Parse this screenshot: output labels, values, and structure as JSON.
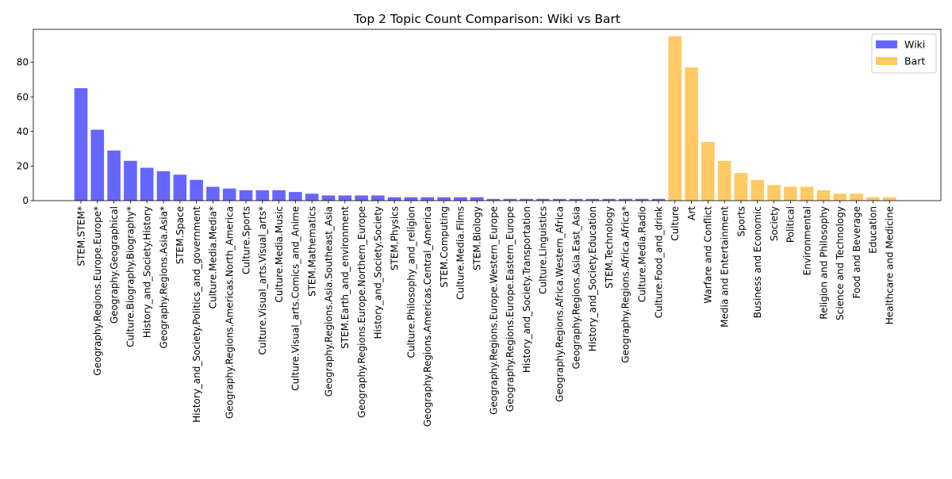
{
  "chart_data": {
    "type": "bar",
    "title": "Top 2 Topic Count Comparison: Wiki vs Bart",
    "xlabel": "",
    "ylabel": "",
    "ylim": [
      0,
      99
    ],
    "yticks": [
      0,
      20,
      40,
      60,
      80
    ],
    "grid": false,
    "legend_position": "top-right",
    "series": [
      {
        "name": "Wiki",
        "color": "#6666ff",
        "categories": [
          "STEM.STEM*",
          "Geography.Regions.Europe.Europe*",
          "Geography.Geographical",
          "Culture.Biography.Biography*",
          "History_and_Society.History",
          "Geography.Regions.Asia.Asia*",
          "STEM.Space",
          "History_and_Society.Politics_and_government",
          "Culture.Media.Media*",
          "Geography.Regions.Americas.North_America",
          "Culture.Sports",
          "Culture.Visual_arts.Visual_arts*",
          "Culture.Media.Music",
          "Culture.Visual_arts.Comics_and_Anime",
          "STEM.Mathematics",
          "Geography.Regions.Asia.Southeast_Asia",
          "STEM.Earth_and_environment",
          "Geography.Regions.Europe.Northern_Europe",
          "History_and_Society.Society",
          "STEM.Physics",
          "Culture.Philosophy_and_religion",
          "Geography.Regions.Americas.Central_America",
          "STEM.Computing",
          "Culture.Media.Films",
          "STEM.Biology",
          "Geography.Regions.Europe.Western_Europe",
          "Geography.Regions.Europe.Eastern_Europe",
          "History_and_Society.Transportation",
          "Culture.Linguistics",
          "Geography.Regions.Africa.Western_Africa",
          "Geography.Regions.Asia.East_Asia",
          "History_and_Society.Education",
          "STEM.Technology",
          "Geography.Regions.Africa.Africa*",
          "Culture.Media.Radio",
          "Culture.Food_and_drink"
        ],
        "values": [
          65,
          41,
          29,
          23,
          19,
          17,
          15,
          12,
          8,
          7,
          6,
          6,
          6,
          5,
          4,
          3,
          3,
          3,
          3,
          2,
          2,
          2,
          2,
          2,
          2,
          1,
          1,
          1,
          1,
          1,
          1,
          1,
          1,
          1,
          1,
          1
        ]
      },
      {
        "name": "Bart",
        "color": "#ffc966",
        "categories": [
          "Culture",
          "Art",
          "Warfare and Conflict",
          "Media and Entertainment",
          "Sports",
          "Business and Economic",
          "Society",
          "Political",
          "Environmental",
          "Religion and Philosophy",
          "Science and Technology",
          "Food and Beverage",
          "Education",
          "Healthcare and Medicine"
        ],
        "values": [
          95,
          77,
          34,
          23,
          16,
          12,
          9,
          8,
          8,
          6,
          4,
          4,
          2,
          2
        ]
      }
    ]
  }
}
